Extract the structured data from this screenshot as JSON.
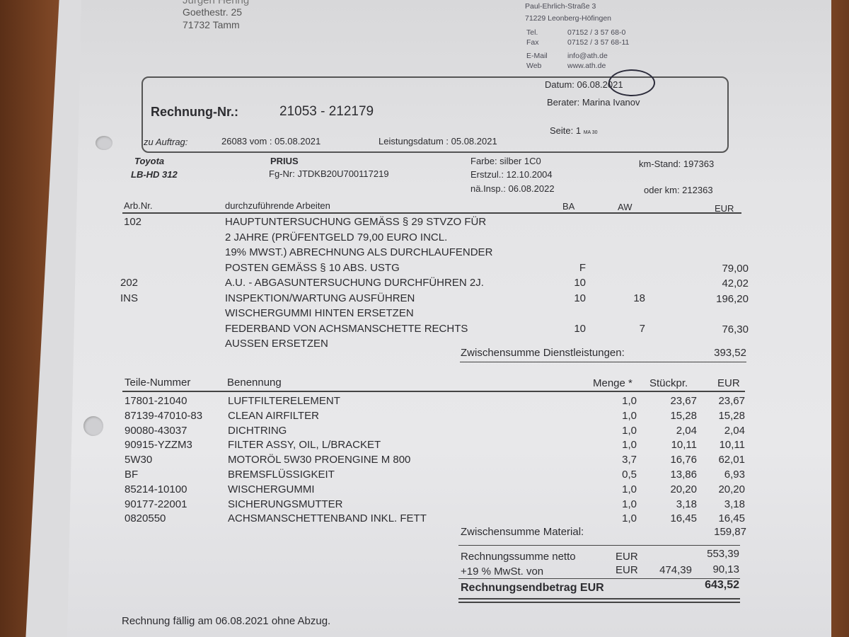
{
  "sender": {
    "name": "Jürgen Hering",
    "street": "Goethestr. 25",
    "city": "71732 Tamm"
  },
  "company": {
    "street": "Paul-Ehrlich-Straße 3",
    "city": "71229 Leonberg-Höfingen",
    "tel_label": "Tel.",
    "tel": "07152 / 3 57 68-0",
    "fax_label": "Fax",
    "fax": "07152 / 3 57 68-11",
    "email_label": "E-Mail",
    "email": "info@ath.de",
    "web_label": "Web",
    "web": "www.ath.de"
  },
  "invoice": {
    "datum": "Datum: 06.08.2021",
    "berater": "Berater: Marina Ivanov",
    "nr_label": "Rechnung-Nr.:",
    "nr": "21053 - 212179",
    "seite": "Seite:  1 ",
    "seite_small": "MA 30",
    "auftrag_label": "zu Auftrag:",
    "auftrag": "26083 vom : 05.08.2021",
    "leistungsdatum": "Leistungsdatum : 05.08.2021"
  },
  "vehicle": {
    "make": "Toyota",
    "plate": "LB-HD 312",
    "model": "PRIUS",
    "fgnr": "Fg-Nr: JTDKB20U700117219",
    "farbe": "Farbe: silber 1C0",
    "erstzul": "Erstzul.: 12.10.2004",
    "nainsp": "nä.Insp.: 06.08.2022",
    "kmstand": "km-Stand: 197363",
    "oderkm": "oder km: 212363"
  },
  "work": {
    "headers": [
      "Arb.Nr.",
      "durchzuführende Arbeiten",
      "BA",
      "AW",
      "EUR"
    ],
    "rows": [
      {
        "nr": "102",
        "text": "HAUPTUNTERSUCHUNG GEMÄSS § 29 STVZO FÜR",
        "ba": "",
        "aw": "",
        "eur": ""
      },
      {
        "nr": "",
        "text": "2 JAHRE (PRÜFENTGELD 79,00 EURO INCL.",
        "ba": "",
        "aw": "",
        "eur": ""
      },
      {
        "nr": "",
        "text": "19% MWST.) ABRECHNUNG ALS DURCHLAUFENDER",
        "ba": "",
        "aw": "",
        "eur": ""
      },
      {
        "nr": "",
        "text": "POSTEN GEMÄSS § 10 ABS. USTG",
        "ba": "F",
        "aw": "",
        "eur": "79,00"
      },
      {
        "nr": "202",
        "text": "A.U. - ABGASUNTERSUCHUNG DURCHFÜHREN 2J.",
        "ba": "10",
        "aw": "",
        "eur": "42,02"
      },
      {
        "nr": "INS",
        "text": "INSPEKTION/WARTUNG AUSFÜHREN",
        "ba": "10",
        "aw": "18",
        "eur": "196,20"
      },
      {
        "nr": "",
        "text": "WISCHERGUMMI HINTEN ERSETZEN",
        "ba": "",
        "aw": "",
        "eur": ""
      },
      {
        "nr": "",
        "text": "FEDERBAND VON ACHSMANSCHETTE RECHTS",
        "ba": "10",
        "aw": "7",
        "eur": "76,30"
      },
      {
        "nr": "",
        "text": "AUSSEN ERSETZEN",
        "ba": "",
        "aw": "",
        "eur": ""
      }
    ],
    "subtotal_label": "Zwischensumme Dienstleistungen:",
    "subtotal": "393,52"
  },
  "parts": {
    "headers": [
      "Teile-Nummer",
      "Benennung",
      "Menge *",
      "Stückpr.",
      "EUR"
    ],
    "rows": [
      {
        "nr": "17801-21040",
        "name": "LUFTFILTERELEMENT",
        "qty": "1,0",
        "price": "23,67",
        "eur": "23,67"
      },
      {
        "nr": "87139-47010-83",
        "name": "CLEAN AIRFILTER",
        "qty": "1,0",
        "price": "15,28",
        "eur": "15,28"
      },
      {
        "nr": "90080-43037",
        "name": "DICHTRING",
        "qty": "1,0",
        "price": "2,04",
        "eur": "2,04"
      },
      {
        "nr": "90915-YZZM3",
        "name": "FILTER ASSY, OIL, L/BRACKET",
        "qty": "1,0",
        "price": "10,11",
        "eur": "10,11"
      },
      {
        "nr": "5W30",
        "name": "MOTORÖL 5W30 PROENGINE M 800",
        "qty": "3,7",
        "price": "16,76",
        "eur": "62,01"
      },
      {
        "nr": "BF",
        "name": "BREMSFLÜSSIGKEIT",
        "qty": "0,5",
        "price": "13,86",
        "eur": "6,93"
      },
      {
        "nr": "85214-10100",
        "name": "WISCHERGUMMI",
        "qty": "1,0",
        "price": "20,20",
        "eur": "20,20"
      },
      {
        "nr": "90177-22001",
        "name": "SICHERUNGSMUTTER",
        "qty": "1,0",
        "price": "3,18",
        "eur": "3,18"
      },
      {
        "nr": "0820550",
        "name": "ACHSMANSCHETTENBAND INKL. FETT",
        "qty": "1,0",
        "price": "16,45",
        "eur": "16,45"
      }
    ],
    "subtotal_label": "Zwischensumme Material:",
    "subtotal": "159,87"
  },
  "totals": {
    "netto_label": "Rechnungssumme netto",
    "netto_cur": "EUR",
    "netto": "553,39",
    "mwst_label": "+19 % MwSt. von",
    "mwst_cur": "EUR",
    "mwst_base": "474,39",
    "mwst": "90,13",
    "end_label": "Rechnungsendbetrag EUR",
    "end": "643,52"
  },
  "footer": {
    "due": "Rechnung fällig am 06.08.2021 ohne Abzug."
  }
}
